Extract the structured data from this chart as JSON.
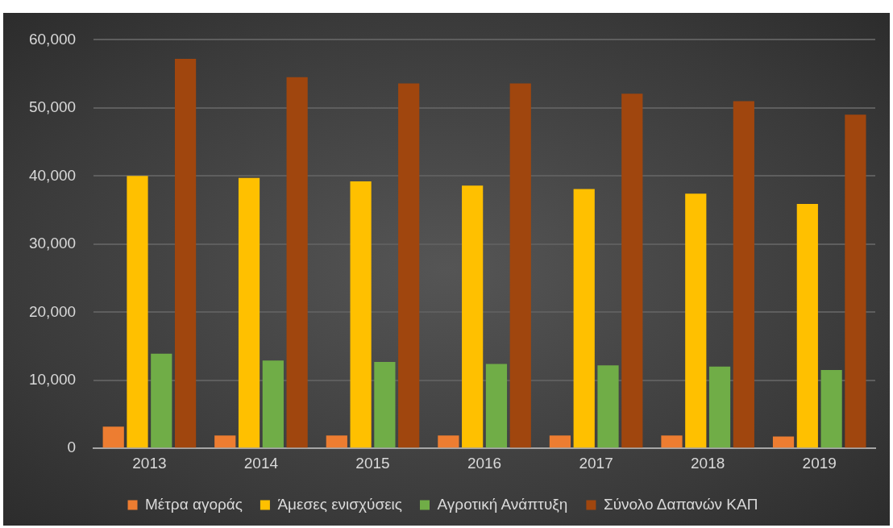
{
  "chart_data": {
    "type": "bar",
    "categories": [
      "2013",
      "2014",
      "2015",
      "2016",
      "2017",
      "2018",
      "2019"
    ],
    "series": [
      {
        "name": "Μέτρα αγοράς",
        "color": "#ed7d31",
        "values": [
          3200,
          1900,
          1900,
          1900,
          1900,
          1900,
          1750
        ]
      },
      {
        "name": "Άμεσες ενισχύσεις",
        "color": "#ffc000",
        "values": [
          40000,
          39700,
          39200,
          38600,
          38100,
          37400,
          35900
        ]
      },
      {
        "name": "Αγροτική Ανάπτυξη",
        "color": "#70ad47",
        "values": [
          13900,
          12900,
          12700,
          12400,
          12200,
          12000,
          11500
        ]
      },
      {
        "name": "Σύνολο Δαπανών ΚΑΠ",
        "color": "#a0460e",
        "values": [
          57200,
          54500,
          53600,
          53600,
          52100,
          51000,
          49000
        ]
      }
    ],
    "ylim": [
      0,
      60000
    ],
    "yticks": [
      {
        "value": 0,
        "label": "0"
      },
      {
        "value": 10000,
        "label": "10,000"
      },
      {
        "value": 20000,
        "label": "20,000"
      },
      {
        "value": 30000,
        "label": "30,000"
      },
      {
        "value": 40000,
        "label": "40,000"
      },
      {
        "value": 50000,
        "label": "50,000"
      },
      {
        "value": 60000,
        "label": "60,000"
      }
    ],
    "grid": "y",
    "legend": "bottom"
  }
}
